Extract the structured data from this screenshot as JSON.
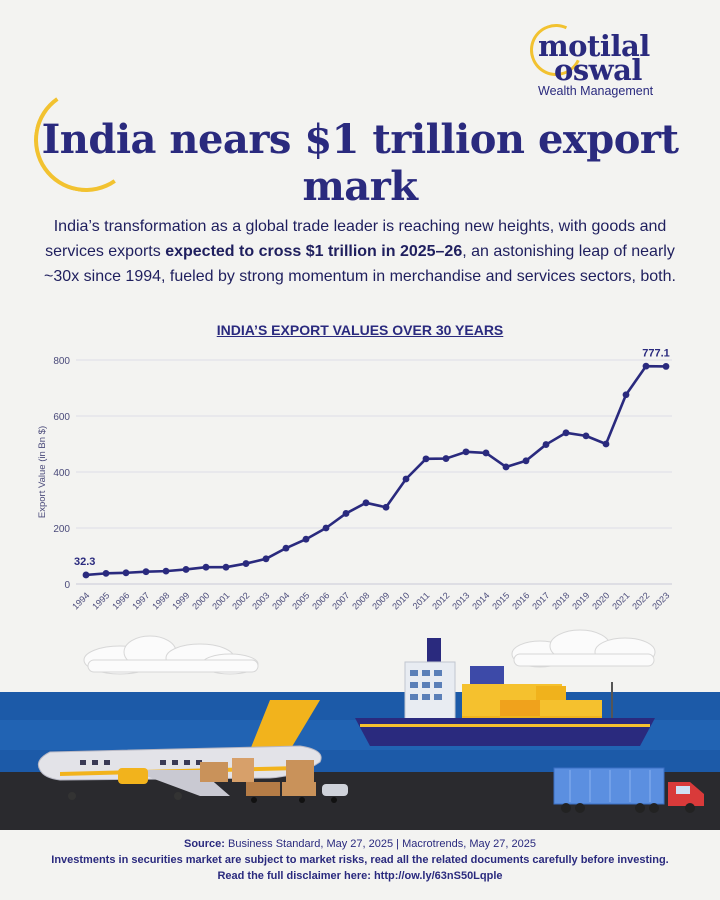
{
  "brand": {
    "name_line1": "motilal",
    "name_line2": "oswal",
    "tagline": "Wealth Management",
    "accent": "#f2c230",
    "primary": "#2a2a7e"
  },
  "title": "India nears $1 trillion export mark",
  "description": {
    "part1": "India’s transformation as a global trade leader is reaching new heights, with goods and services exports ",
    "highlight": "expected to cross $1 trillion in 2025–26",
    "part2": ", an astonishing leap of nearly ~30x since 1994, fueled by strong momentum in merchandise and services sectors, both."
  },
  "chart_data": {
    "type": "line",
    "title": "INDIA’S EXPORT VALUES OVER 30 YEARS",
    "xlabel": "",
    "ylabel": "Export Value (in Bn $)",
    "ylim": [
      0,
      800
    ],
    "yticks": [
      0,
      200,
      400,
      600,
      800
    ],
    "grid": true,
    "x": [
      "1994",
      "1995",
      "1996",
      "1997",
      "1998",
      "1999",
      "2000",
      "2001",
      "2002",
      "2003",
      "2004",
      "2005",
      "2006",
      "2007",
      "2008",
      "2009",
      "2010",
      "2011",
      "2012",
      "2013",
      "2014",
      "2015",
      "2016",
      "2017",
      "2018",
      "2019",
      "2020",
      "2021",
      "2022",
      "2023"
    ],
    "series": [
      {
        "values": [
          32.3,
          38,
          40,
          44,
          46,
          52,
          60,
          60,
          73,
          90,
          128,
          160,
          200,
          252,
          290,
          274,
          375,
          447,
          448,
          472,
          468,
          418,
          440,
          498,
          540,
          529,
          500,
          676,
          778,
          777.1
        ],
        "color": "#2a2a7e"
      }
    ],
    "annotations": [
      {
        "index": 0,
        "text": "32.3"
      },
      {
        "index": 29,
        "text": "777.1"
      }
    ]
  },
  "footer": {
    "source_label": "Source:",
    "source_text": " Business Standard, May 27, 2025  |  Macrotrends, May 27, 2025",
    "disclaimer": "Investments in securities market are subject to market risks, read all the related documents carefully before investing.",
    "link_text": "Read the full disclaimer here:  http://ow.ly/63nS50Lqple"
  }
}
